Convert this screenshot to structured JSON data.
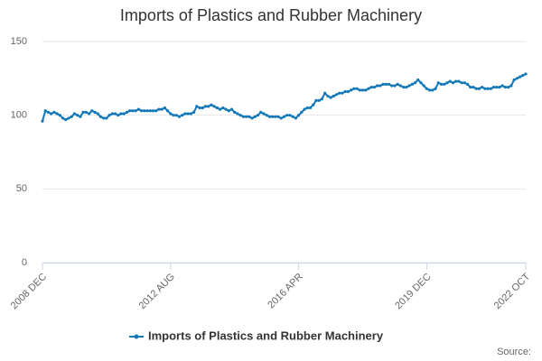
{
  "chart_data": {
    "type": "line",
    "title": "Imports of Plastics and Rubber Machinery",
    "source_label": "Source:",
    "categories": [
      "2008 DEC",
      null,
      null,
      null,
      null,
      null,
      null,
      null,
      null,
      null,
      null,
      null,
      null,
      null,
      null,
      null,
      null,
      null,
      null,
      null,
      null,
      null,
      null,
      null,
      null,
      null,
      null,
      null,
      null,
      null,
      null,
      null,
      null,
      null,
      null,
      null,
      null,
      null,
      null,
      null,
      null,
      null,
      null,
      null,
      "2012 AUG",
      null,
      null,
      null,
      null,
      null,
      null,
      null,
      null,
      null,
      null,
      null,
      null,
      null,
      null,
      null,
      null,
      null,
      null,
      null,
      null,
      null,
      null,
      null,
      null,
      null,
      null,
      null,
      null,
      null,
      null,
      null,
      null,
      null,
      null,
      null,
      null,
      null,
      null,
      null,
      null,
      null,
      null,
      null,
      "2016 APR",
      null,
      null,
      null,
      null,
      null,
      null,
      null,
      null,
      null,
      null,
      null,
      null,
      null,
      null,
      null,
      null,
      null,
      null,
      null,
      null,
      null,
      null,
      null,
      null,
      null,
      null,
      null,
      null,
      null,
      null,
      null,
      null,
      null,
      null,
      null,
      null,
      null,
      null,
      null,
      null,
      null,
      null,
      null,
      "2019 DEC",
      null,
      null,
      null,
      null,
      null,
      null,
      null,
      null,
      null,
      null,
      null,
      null,
      null,
      null,
      null,
      null,
      null,
      null,
      null,
      null,
      null,
      null,
      null,
      null,
      null,
      null,
      null,
      null,
      null,
      null,
      null,
      null,
      null,
      "2022 OCT"
    ],
    "series": [
      {
        "name": "Imports of Plastics and Rubber Machinery",
        "color": "#1378b8",
        "values": [
          96,
          103,
          102,
          101,
          102,
          101,
          100,
          98,
          97,
          98,
          99,
          101,
          100,
          99,
          102,
          102,
          101,
          103,
          102,
          101,
          99,
          98,
          98,
          100,
          101,
          101,
          100,
          101,
          101,
          102,
          103,
          103,
          103,
          104,
          103,
          103,
          103,
          103,
          103,
          103,
          104,
          104,
          105,
          103,
          101,
          100,
          100,
          99,
          100,
          101,
          101,
          101,
          102,
          106,
          105,
          105,
          106,
          106,
          107,
          106,
          105,
          104,
          105,
          104,
          103,
          104,
          102,
          101,
          100,
          99,
          99,
          99,
          98,
          99,
          100,
          102,
          101,
          100,
          99,
          99,
          99,
          99,
          98,
          99,
          100,
          100,
          99,
          98,
          100,
          102,
          104,
          105,
          105,
          107,
          110,
          110,
          111,
          115,
          113,
          112,
          113,
          114,
          115,
          115,
          116,
          116,
          117,
          118,
          118,
          117,
          117,
          117,
          118,
          119,
          119,
          120,
          120,
          121,
          121,
          121,
          120,
          120,
          121,
          120,
          119,
          119,
          120,
          121,
          122,
          124,
          122,
          120,
          118,
          117,
          117,
          118,
          122,
          121,
          121,
          122,
          123,
          122,
          123,
          123,
          122,
          122,
          121,
          119,
          119,
          118,
          118,
          119,
          118,
          118,
          118,
          119,
          119,
          119,
          120,
          119,
          119,
          120,
          124,
          125,
          126,
          127,
          128
        ]
      }
    ],
    "ylim": [
      0,
      150
    ],
    "yticks": [
      0,
      50,
      100,
      150
    ],
    "grid": true
  }
}
